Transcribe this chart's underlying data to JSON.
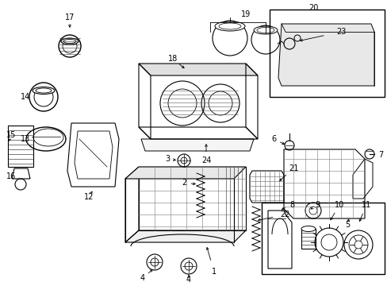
{
  "bg_color": "#ffffff",
  "lc": "#000000",
  "fig_w": 4.89,
  "fig_h": 3.6,
  "dpi": 100
}
